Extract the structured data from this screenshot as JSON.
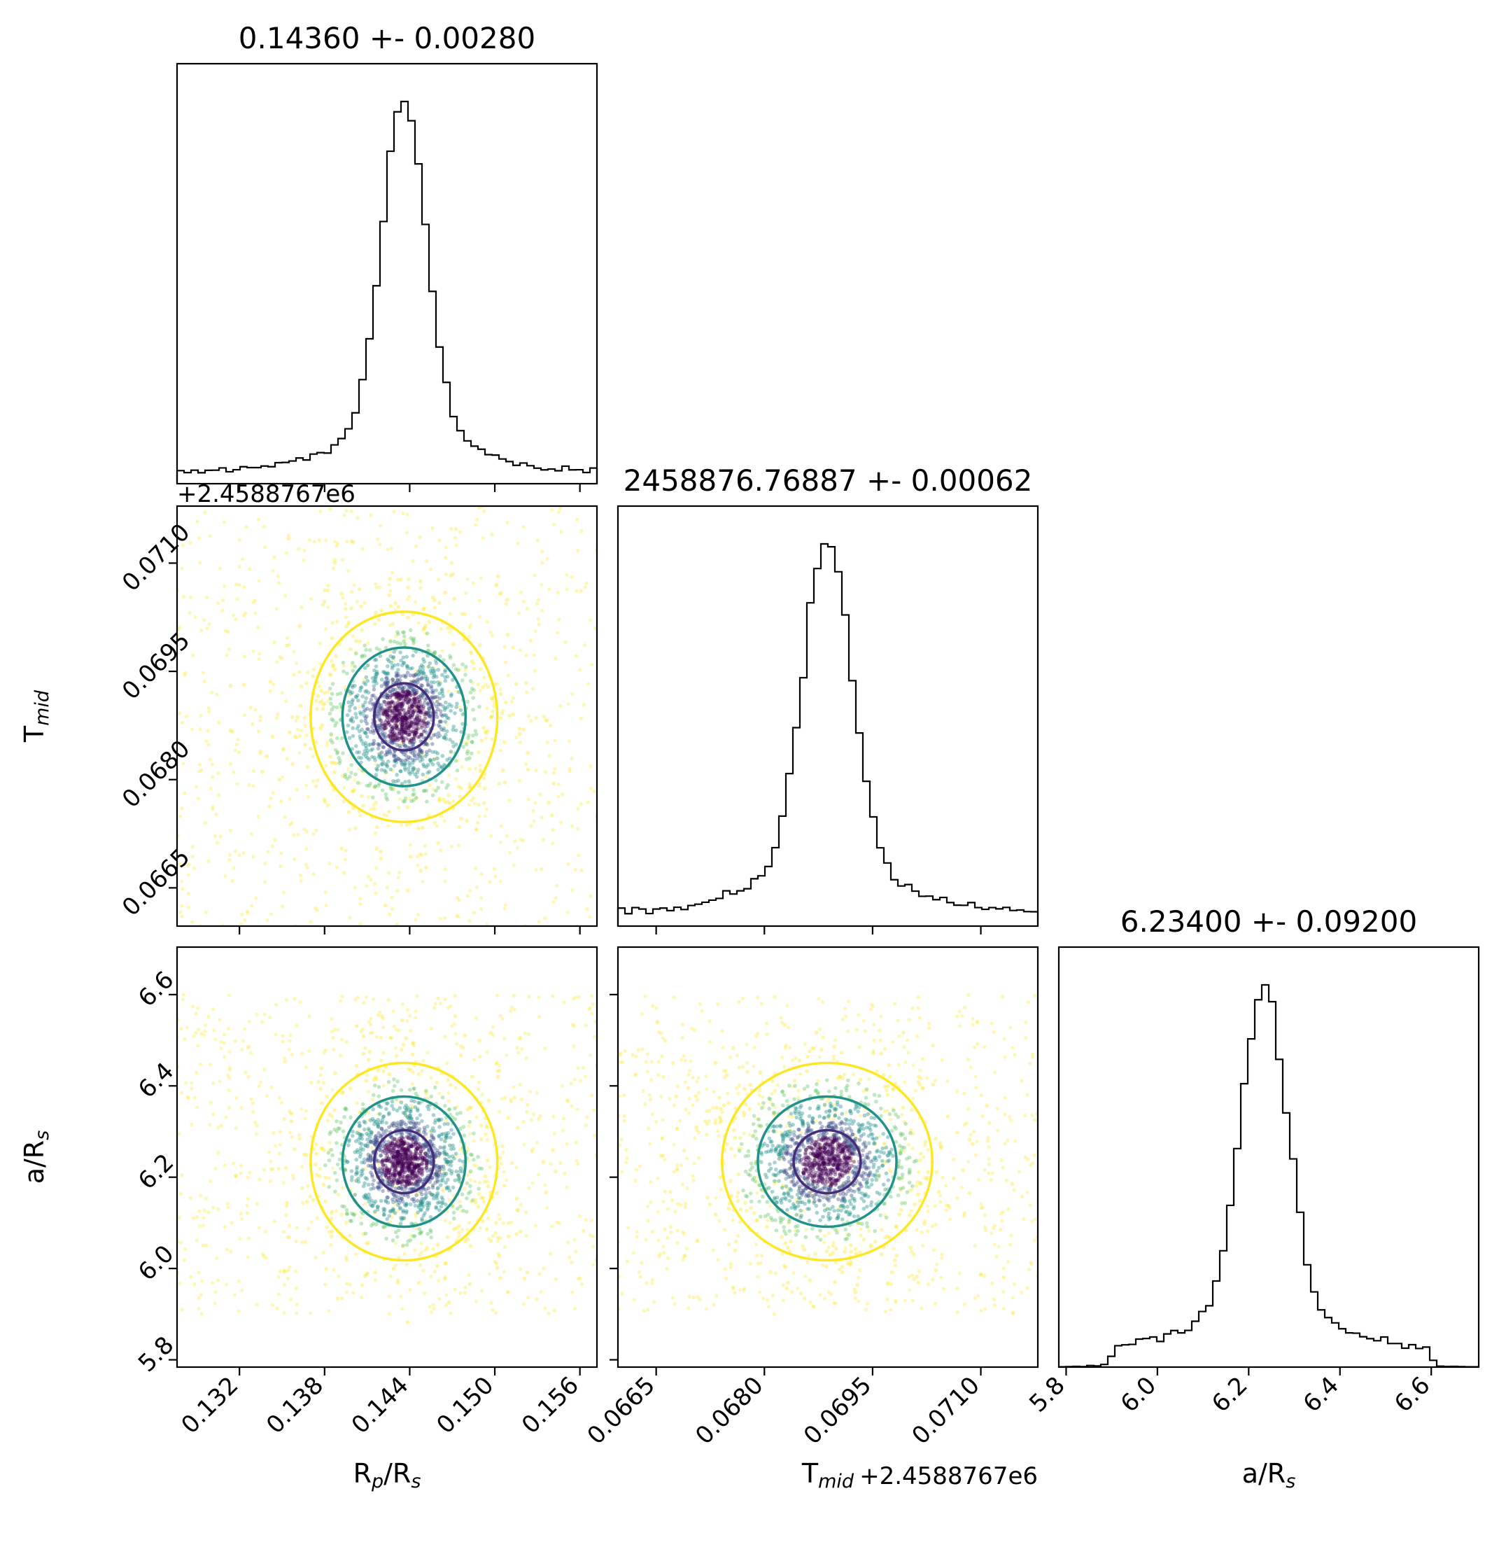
{
  "chart_data": {
    "type": "scatter",
    "subtype": "corner-plot",
    "parameters": [
      {
        "key": "rp",
        "label": "R",
        "label_sub": "p",
        "label_rest": "/R",
        "label_sub2": "s",
        "range": [
          0.1276,
          0.1572
        ],
        "ticks": [
          0.132,
          0.138,
          0.144,
          0.15,
          0.156
        ],
        "tick_labels": [
          "0.132",
          "0.138",
          "0.144",
          "0.150",
          "0.156"
        ],
        "title": "0.14360 +- 0.00280"
      },
      {
        "key": "tmid",
        "label": "T",
        "label_sub": "mid",
        "label_rest": "",
        "label_sub2": "",
        "offset_label": "+2.4588767e6",
        "range": [
          0.06597,
          0.07179
        ],
        "ticks": [
          0.0665,
          0.068,
          0.0695,
          0.071
        ],
        "tick_labels": [
          "0.0665",
          "0.0680",
          "0.0695",
          "0.0710"
        ],
        "title": "2458876.76887 +- 0.00062"
      },
      {
        "key": "ars",
        "label": "a/R",
        "label_sub": "s",
        "label_rest": "",
        "label_sub2": "",
        "range": [
          5.784,
          6.704
        ],
        "ticks": [
          5.8,
          6.0,
          6.2,
          6.4,
          6.6
        ],
        "tick_labels": [
          "5.8",
          "6.0",
          "6.2",
          "6.4",
          "6.6"
        ],
        "title": "6.23400 +- 0.09200"
      }
    ],
    "marginals": {
      "rp": {
        "center": 0.1436,
        "sigma": 0.0028,
        "hist_peak": 1.0
      },
      "tmid": {
        "center": 0.06887,
        "sigma": 0.00062,
        "hist_peak": 1.0
      },
      "ars": {
        "center": 6.234,
        "sigma": 0.092,
        "support": [
          5.9,
          6.6
        ],
        "hist_peak": 1.0
      }
    },
    "contour_levels": [
      "1-sigma",
      "2-sigma",
      "3-sigma"
    ],
    "contour_colors": [
      "#472c7a",
      "#21918c",
      "#fde725"
    ],
    "point_colors": [
      "#440154",
      "#3b528b",
      "#21918c",
      "#5ec962",
      "#fde725"
    ],
    "hist_color": "#000000"
  }
}
